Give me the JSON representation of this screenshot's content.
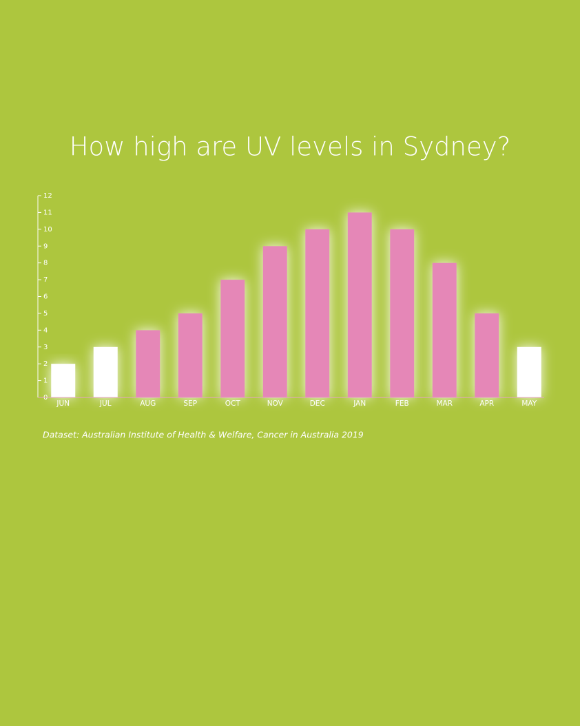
{
  "chart_data": {
    "type": "bar",
    "title": "How high are UV levels in Sydney?",
    "categories": [
      "JUN",
      "JUL",
      "AUG",
      "SEP",
      "OCT",
      "NOV",
      "DEC",
      "JAN",
      "FEB",
      "MAR",
      "APR",
      "MAY"
    ],
    "values": [
      2,
      3,
      4,
      5,
      7,
      9,
      10,
      11,
      10,
      8,
      5,
      3
    ],
    "colors": [
      "#ffffff",
      "#ffffff",
      "#e587b7",
      "#e587b7",
      "#e587b7",
      "#e587b7",
      "#e587b7",
      "#e587b7",
      "#e587b7",
      "#e587b7",
      "#e587b7",
      "#ffffff"
    ],
    "ylim": [
      0,
      12
    ],
    "yticks": [
      0,
      1,
      2,
      3,
      4,
      5,
      6,
      7,
      8,
      9,
      10,
      11,
      12
    ],
    "source": "Dataset: Australian Institute of Health & Welfare, Cancer in Australia 2019"
  }
}
